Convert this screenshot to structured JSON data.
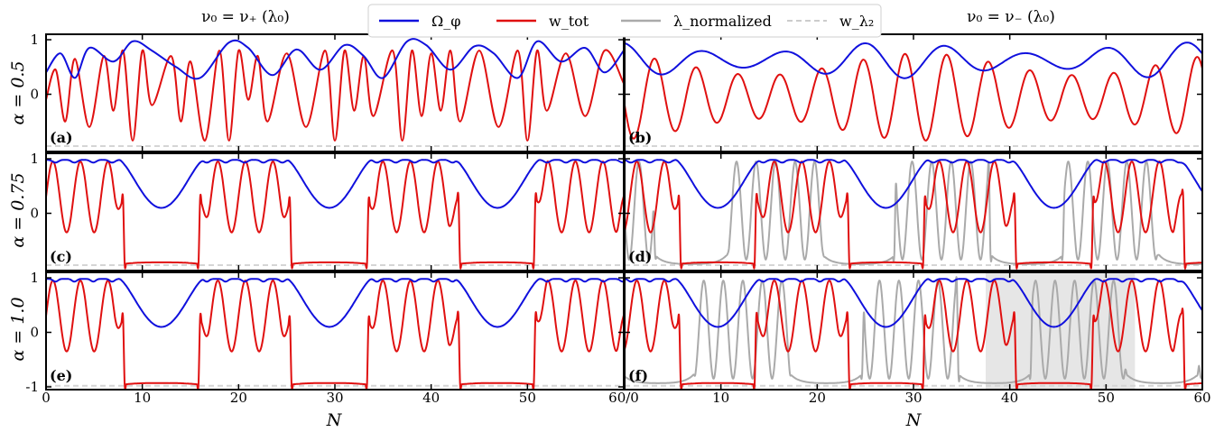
{
  "column_titles": [
    "ν₀ = ν₊ (λ₀)",
    "ν₀ = ν₋ (λ₀)"
  ],
  "row_labels": [
    "α = 0.5",
    "α = 0.75",
    "α = 1.0"
  ],
  "legend": {
    "entries": [
      {
        "label": "Ω_φ",
        "color": "#1010dd",
        "style": "solid"
      },
      {
        "label": "w_tot",
        "color": "#e01010",
        "style": "solid"
      },
      {
        "label": "λ_normalized",
        "color": "#aaaaaa",
        "style": "solid"
      },
      {
        "label": "w_λ₂",
        "color": "#cccccc",
        "style": "dashed"
      }
    ],
    "placement": "top-center"
  },
  "x_tick_labels": [
    "0",
    "10",
    "20",
    "30",
    "40",
    "50",
    "60/0",
    "10",
    "20",
    "30",
    "40",
    "50",
    "60"
  ],
  "xlabel": "N",
  "chart_data": {
    "type": "line",
    "layout": "3 rows x 2 columns of panels, shared x axis",
    "xlim": [
      0,
      60
    ],
    "ylim": [
      -1.05,
      1.1
    ],
    "yticks_shown": [
      "1",
      "0",
      "-1"
    ],
    "xticks": [
      0,
      10,
      20,
      30,
      40,
      50,
      60
    ],
    "grid": false,
    "panels": [
      {
        "label": "(a)",
        "alpha": 0.5,
        "column": "ν₀ = ν₊ (λ₀)",
        "w_floor": -0.95,
        "omega_peaks": [
          0.0,
          3.1,
          7.2,
          8.2,
          12.6,
          15.7,
          19.8,
          21.0,
          25.0,
          28.3,
          32.2,
          34.1,
          37.8,
          40.8,
          45.0,
          46.3,
          50.4,
          53.4,
          57.3
        ],
        "omega": {
          "x": [
            0,
            1.5,
            3,
            4.5,
            7,
            9,
            11,
            13.5,
            16,
            19,
            21,
            23.5,
            26,
            28.5,
            31,
            33,
            35,
            37.5,
            39.5,
            42,
            44.5,
            46.5,
            49,
            51,
            53.5,
            56,
            58,
            60
          ],
          "y": [
            0.4,
            0.75,
            0.3,
            0.85,
            0.6,
            0.97,
            0.8,
            0.5,
            0.3,
            0.95,
            0.85,
            0.35,
            0.82,
            0.45,
            0.9,
            0.7,
            0.3,
            0.97,
            0.9,
            0.45,
            0.88,
            0.75,
            0.3,
            0.97,
            0.6,
            0.85,
            0.4,
            0.8
          ]
        },
        "w_tot": {
          "x": [
            0,
            1,
            2,
            3,
            4.5,
            6,
            7,
            8,
            9,
            10,
            11,
            13,
            14,
            15,
            16.5,
            18,
            19,
            20,
            21,
            22,
            23,
            25,
            27,
            29,
            30,
            31,
            32,
            33,
            34,
            36,
            37,
            38,
            39,
            40,
            41,
            42,
            43,
            45,
            47,
            49,
            50,
            51,
            52,
            54,
            56,
            58,
            60
          ],
          "y": [
            -0.1,
            0.45,
            -0.5,
            0.65,
            -0.6,
            0.7,
            -0.3,
            0.8,
            -0.85,
            0.8,
            -0.2,
            0.7,
            -0.5,
            0.6,
            -0.85,
            0.8,
            -0.85,
            0.8,
            -0.1,
            0.7,
            -0.5,
            0.75,
            -0.6,
            0.8,
            -0.85,
            0.8,
            -0.3,
            0.7,
            -0.4,
            0.8,
            -0.85,
            0.8,
            -0.4,
            0.75,
            -0.3,
            0.8,
            -0.5,
            0.8,
            -0.6,
            0.8,
            -0.85,
            0.8,
            -0.3,
            0.75,
            -0.4,
            0.8,
            0.2
          ]
        }
      },
      {
        "label": "(b)",
        "alpha": 0.5,
        "column": "ν₀ = ν₋ (λ₀)",
        "w_floor": -0.95
      },
      {
        "label": "(c)",
        "alpha": 0.75,
        "column": "ν₀ = ν₊ (λ₀)",
        "w_floor": -0.95
      },
      {
        "label": "(d)",
        "alpha": 0.75,
        "column": "ν₀ = ν₋ (λ₀)",
        "w_floor": -0.95,
        "has_lambda": true
      },
      {
        "label": "(e)",
        "alpha": 1.0,
        "column": "ν₀ = ν₊ (λ₀)",
        "w_floor": -0.98
      },
      {
        "label": "(f)",
        "alpha": 1.0,
        "column": "ν₀ = ν₋ (λ₀)",
        "w_floor": -0.98,
        "has_lambda": true,
        "shaded_x": [
          37.5,
          53
        ]
      }
    ]
  }
}
